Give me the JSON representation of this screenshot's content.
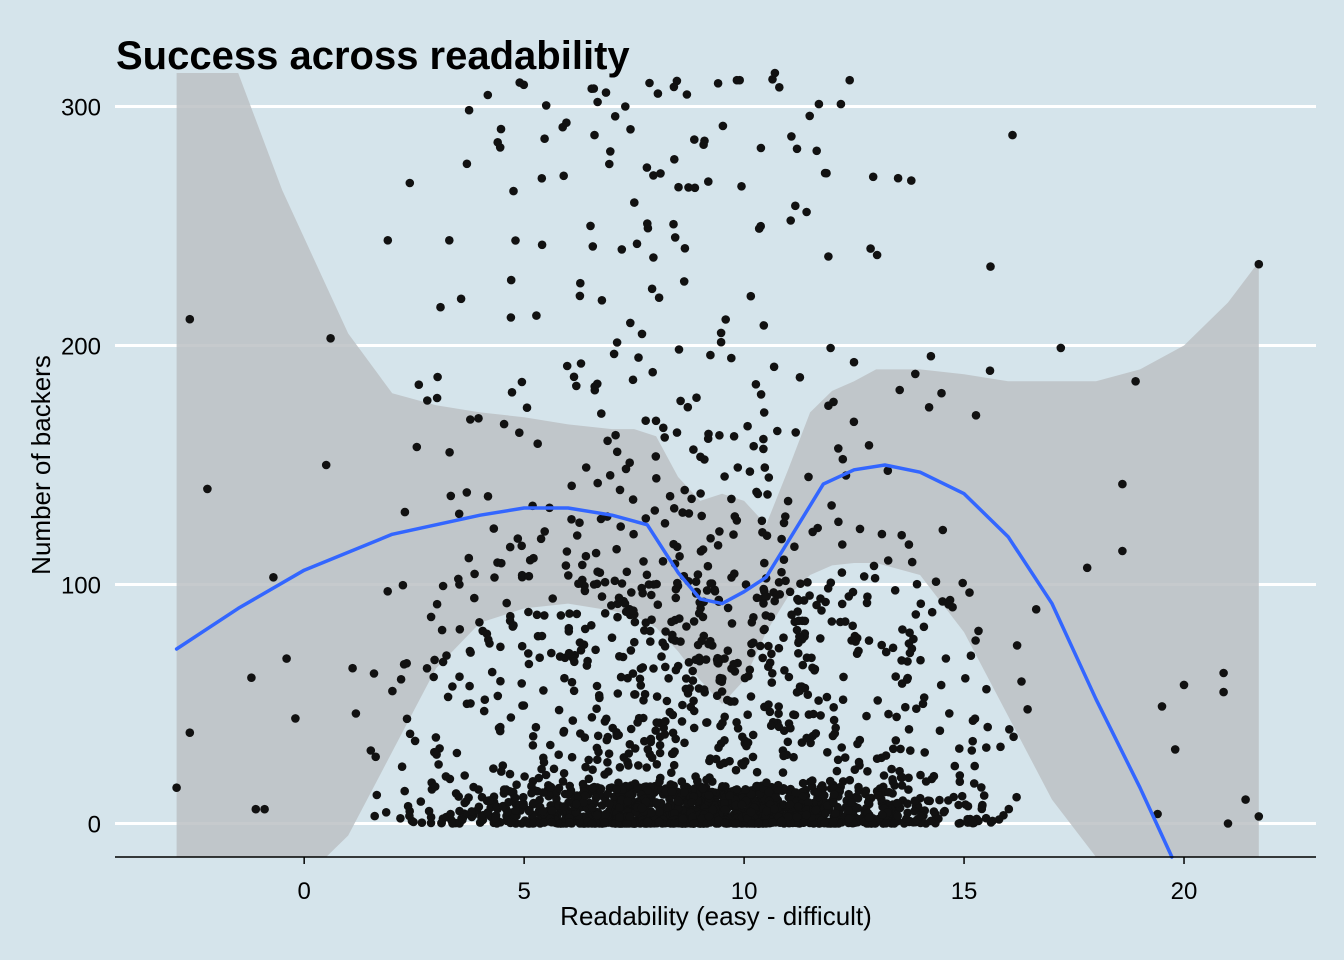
{
  "colors": {
    "background": "#d5e4eb",
    "gridline": "#ffffff",
    "points": "#111111",
    "confidence_band": "#bcc1c4",
    "smooth_line": "#3366ff",
    "axis_line": "#000000"
  },
  "chart_data": {
    "type": "scatter",
    "title": "Success across readability",
    "xlabel": "Readability (easy - difficult)",
    "ylabel": "Number of backers",
    "xlim": [
      -4.3,
      23.0
    ],
    "ylim": [
      -14,
      314
    ],
    "x_ticks": [
      0,
      5,
      10,
      15,
      20
    ],
    "y_ticks": [
      0,
      100,
      200,
      300
    ],
    "grid": {
      "horizontal_major": true,
      "vertical": false
    },
    "legend": "none",
    "smooth": {
      "method": "loess",
      "x": [
        -2.9,
        -1.5,
        0,
        2,
        4,
        5,
        6,
        7,
        7.8,
        8.5,
        9,
        9.5,
        10,
        10.5,
        11,
        11.8,
        12.5,
        13.2,
        14,
        15,
        16,
        17,
        18,
        19,
        20,
        20.6
      ],
      "y": [
        73,
        90,
        106,
        121,
        129,
        132,
        132,
        129,
        125,
        105,
        94,
        92,
        97,
        103,
        118,
        142,
        148,
        150,
        147,
        138,
        120,
        92,
        52,
        15,
        -25,
        -60
      ]
    },
    "confidence_band": {
      "x": [
        -2.9,
        -1.5,
        -0.5,
        0.5,
        1,
        2,
        3,
        4,
        5,
        6,
        7,
        7.5,
        8,
        8.5,
        9,
        9.5,
        10,
        10.5,
        11,
        11.5,
        12,
        12.5,
        13,
        14,
        15,
        16,
        17,
        18,
        19,
        20,
        21,
        21.7
      ],
      "upper": [
        330,
        315,
        265,
        225,
        205,
        180,
        175,
        172,
        170,
        167,
        165,
        165,
        162,
        145,
        135,
        138,
        135,
        125,
        148,
        172,
        181,
        185,
        190,
        190,
        188,
        185,
        185,
        185,
        190,
        200,
        218,
        235
      ],
      "lower": [
        -100,
        -60,
        -30,
        -15,
        -5,
        30,
        65,
        84,
        90,
        92,
        89,
        87,
        82,
        72,
        60,
        50,
        60,
        80,
        95,
        104,
        108,
        109,
        109,
        104,
        80,
        45,
        10,
        -30,
        -70,
        -120,
        -170,
        -210
      ]
    },
    "annotated_points": [
      {
        "x": -2.9,
        "y": 15
      },
      {
        "x": -2.6,
        "y": 38
      },
      {
        "x": -2.6,
        "y": 211
      },
      {
        "x": -2.2,
        "y": 140
      },
      {
        "x": -1.2,
        "y": 61
      },
      {
        "x": -1.1,
        "y": 6
      },
      {
        "x": -0.9,
        "y": 6
      },
      {
        "x": -0.7,
        "y": 103
      },
      {
        "x": -0.4,
        "y": 69
      },
      {
        "x": -0.2,
        "y": 44
      },
      {
        "x": 0.5,
        "y": 150
      },
      {
        "x": 0.6,
        "y": 203
      },
      {
        "x": 1.1,
        "y": 65
      },
      {
        "x": 1.9,
        "y": 244
      },
      {
        "x": 2.4,
        "y": 268
      },
      {
        "x": 2.8,
        "y": 177
      },
      {
        "x": 3.1,
        "y": 216
      },
      {
        "x": 3.3,
        "y": 244
      },
      {
        "x": 3.7,
        "y": 276
      },
      {
        "x": 4.4,
        "y": 285
      },
      {
        "x": 4.9,
        "y": 310
      },
      {
        "x": 5.9,
        "y": 271
      },
      {
        "x": 6.6,
        "y": 288
      },
      {
        "x": 7.3,
        "y": 300
      },
      {
        "x": 7.8,
        "y": 251
      },
      {
        "x": 8.1,
        "y": 272
      },
      {
        "x": 8.7,
        "y": 305
      },
      {
        "x": 9.9,
        "y": 311
      },
      {
        "x": 10.8,
        "y": 308
      },
      {
        "x": 10.7,
        "y": 314
      },
      {
        "x": 12.4,
        "y": 311
      },
      {
        "x": 12.2,
        "y": 301
      },
      {
        "x": 11.7,
        "y": 301
      },
      {
        "x": 13.5,
        "y": 270
      },
      {
        "x": 13.8,
        "y": 269
      },
      {
        "x": 16.1,
        "y": 288
      },
      {
        "x": 15.6,
        "y": 233
      },
      {
        "x": 17.2,
        "y": 199
      },
      {
        "x": 18.9,
        "y": 185
      },
      {
        "x": 21.7,
        "y": 234
      },
      {
        "x": 17.8,
        "y": 107
      },
      {
        "x": 18.6,
        "y": 114
      },
      {
        "x": 18.6,
        "y": 142
      },
      {
        "x": 19.5,
        "y": 49
      },
      {
        "x": 20.0,
        "y": 58
      },
      {
        "x": 20.9,
        "y": 63
      },
      {
        "x": 20.9,
        "y": 55
      },
      {
        "x": 21.4,
        "y": 10
      },
      {
        "x": 21.0,
        "y": 0
      },
      {
        "x": 21.7,
        "y": 3
      },
      {
        "x": 19.8,
        "y": 31
      },
      {
        "x": 19.4,
        "y": 4
      }
    ],
    "scatter_summary": {
      "approx_point_count": 2200,
      "x_range": [
        -2.9,
        21.7
      ],
      "y_range": [
        0,
        314
      ],
      "dense_region": {
        "x": [
          1,
          17
        ],
        "y": [
          0,
          100
        ]
      }
    }
  }
}
